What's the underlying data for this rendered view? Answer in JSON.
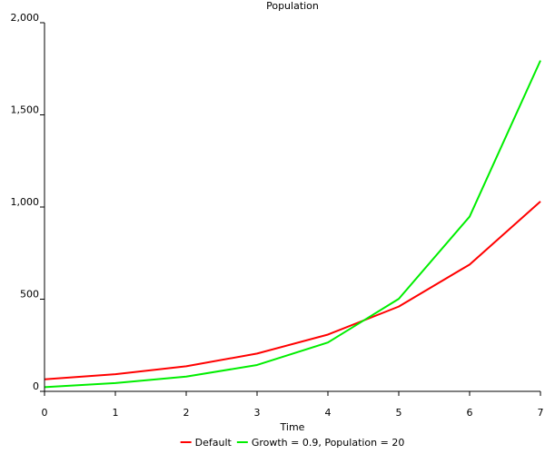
{
  "chart_data": {
    "type": "line",
    "title": "Population",
    "xlabel": "Time",
    "ylabel": "",
    "xlim": [
      0,
      7
    ],
    "ylim": [
      0,
      2000
    ],
    "x_ticks": [
      "0",
      "1",
      "2",
      "3",
      "4",
      "5",
      "6",
      "7"
    ],
    "y_ticks": [
      "0",
      "500",
      "1,000",
      "1,500",
      "2,000"
    ],
    "grid": false,
    "legend_position": "bottom",
    "x": [
      0,
      1,
      2,
      3,
      4,
      5,
      6,
      7
    ],
    "series": [
      {
        "name": "Default",
        "color": "#ff0000",
        "values": [
          65,
          93,
          136,
          205,
          308,
          460,
          688,
          1030
        ]
      },
      {
        "name": "Growth = 0.9, Population = 20",
        "color": "#00ee00",
        "values": [
          23,
          45,
          80,
          143,
          265,
          502,
          948,
          1795
        ]
      }
    ]
  }
}
